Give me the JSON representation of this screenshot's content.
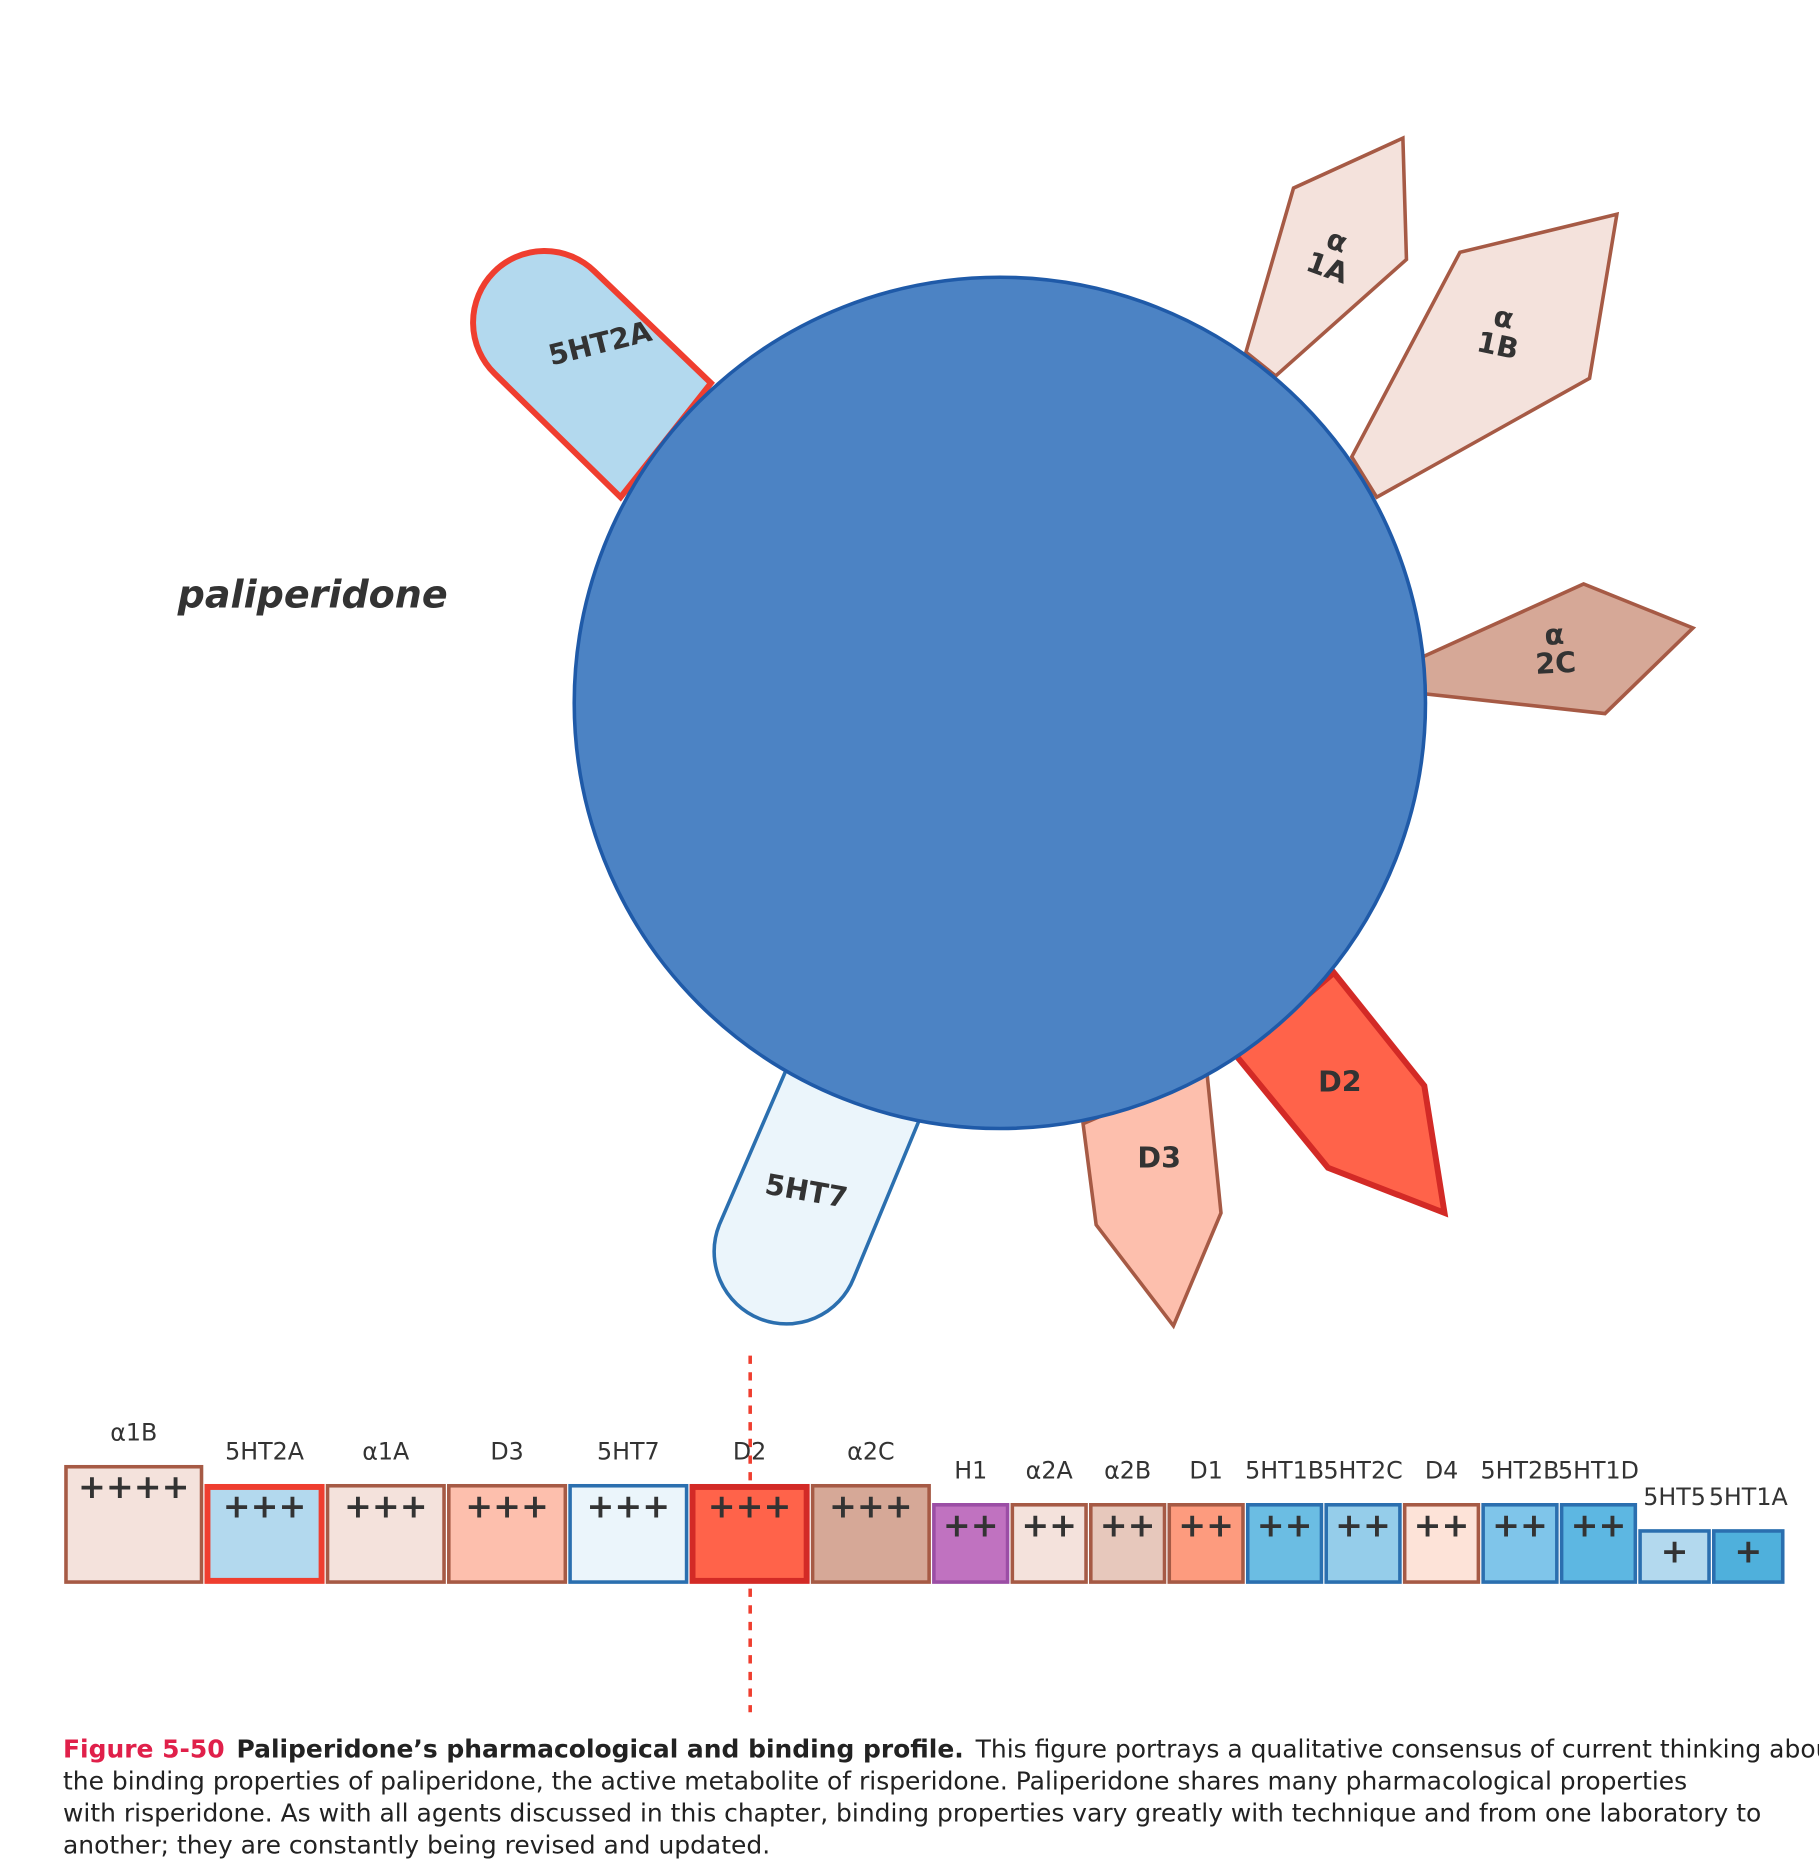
{
  "drug_name": "paliperidone",
  "receptors": {
    "r5ht2a": "5HT2A",
    "a1a": [
      "α",
      "1A"
    ],
    "a1b": [
      "α",
      "1B"
    ],
    "a2c": [
      "α",
      "2C"
    ],
    "d2": "D2",
    "d3": "D3",
    "r5ht7": "5HT7"
  },
  "binding_bar": [
    {
      "label": "α1B",
      "strength": "++++",
      "fill": "#f4e2dc",
      "stroke": "#a65a45"
    },
    {
      "label": "5HT2A",
      "strength": "+++",
      "fill": "#b3d9ee",
      "stroke": "#ef3e2f",
      "bold_outline": true
    },
    {
      "label": "α1A",
      "strength": "+++",
      "fill": "#f4e2dc",
      "stroke": "#a65a45"
    },
    {
      "label": "D3",
      "strength": "+++",
      "fill": "#fdbfad",
      "stroke": "#a65a45"
    },
    {
      "label": "5HT7",
      "strength": "+++",
      "fill": "#ebf5fb",
      "stroke": "#2b6faf"
    },
    {
      "label": "D2",
      "strength": "+++",
      "fill": "#ff634a",
      "stroke": "#d32a26",
      "bold_outline": true
    },
    {
      "label": "α2C",
      "strength": "+++",
      "fill": "#d6a897",
      "stroke": "#a65a45"
    },
    {
      "label": "H1",
      "strength": "++",
      "fill": "#c072c0",
      "stroke": "#9b4ea5"
    },
    {
      "label": "α2A",
      "strength": "++",
      "fill": "#f4e2dc",
      "stroke": "#a65a45"
    },
    {
      "label": "α2B",
      "strength": "++",
      "fill": "#e7c8bc",
      "stroke": "#a65a45"
    },
    {
      "label": "D1",
      "strength": "++",
      "fill": "#fd9b7e",
      "stroke": "#a65a45"
    },
    {
      "label": "5HT1B",
      "strength": "++",
      "fill": "#6bbde3",
      "stroke": "#2b6faf"
    },
    {
      "label": "5HT2C",
      "strength": "++",
      "fill": "#95cdea",
      "stroke": "#2b6faf"
    },
    {
      "label": "D4",
      "strength": "++",
      "fill": "#fde3d8",
      "stroke": "#a65a45"
    },
    {
      "label": "5HT2B",
      "strength": "++",
      "fill": "#7fc5ea",
      "stroke": "#2b6faf"
    },
    {
      "label": "5HT1D",
      "strength": "++",
      "fill": "#5db7e2",
      "stroke": "#2b6faf"
    },
    {
      "label": "5HT5",
      "strength": "+",
      "fill": "#b3d9ee",
      "stroke": "#2b6faf"
    },
    {
      "label": "5HT1A",
      "strength": "+",
      "fill": "#4fb0dc",
      "stroke": "#2b6faf"
    }
  ],
  "caption": {
    "figure_label": "Figure 5-50",
    "title": "Paliperidone’s pharmacological and binding profile.",
    "body_lines": [
      "This figure portrays a qualitative consensus of current thinking about",
      "the binding properties of paliperidone, the active metabolite of risperidone. Paliperidone shares many pharmacological properties",
      "with risperidone. As with all agents discussed in this chapter, binding properties vary greatly with technique and from one laboratory to",
      "another; they are constantly being revised and updated."
    ]
  }
}
